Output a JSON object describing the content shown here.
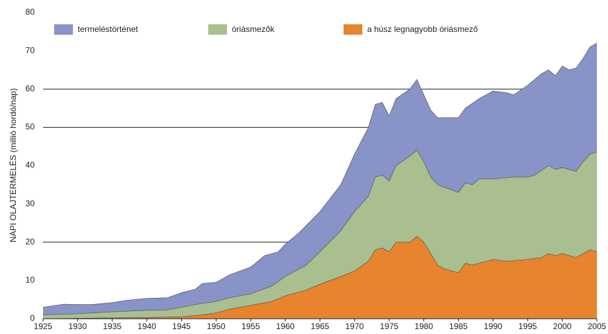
{
  "chart_data": {
    "type": "area",
    "y_label": "NAPI OLAJTERMELÉS (millió hordó/nap)",
    "xlim": [
      1925,
      2005
    ],
    "xticks": [
      1925,
      1930,
      1935,
      1940,
      1945,
      1950,
      1955,
      1960,
      1965,
      1970,
      1975,
      1980,
      1985,
      1990,
      1995,
      2000,
      2005
    ],
    "ylim": [
      0,
      80
    ],
    "yticks": [
      0,
      10,
      20,
      30,
      40,
      50,
      60,
      70,
      80
    ],
    "grid_lines": [
      20,
      50,
      60
    ],
    "series": [
      {
        "name": "termeléstörténet",
        "color": "#8893c8",
        "x": [
          1925,
          1928,
          1930,
          1932,
          1935,
          1937,
          1940,
          1943,
          1945,
          1947,
          1948,
          1950,
          1952,
          1955,
          1957,
          1959,
          1960,
          1962,
          1965,
          1968,
          1970,
          1972,
          1973,
          1974,
          1975,
          1976,
          1978,
          1979,
          1980,
          1981,
          1982,
          1983,
          1985,
          1986,
          1988,
          1990,
          1992,
          1993,
          1995,
          1997,
          1998,
          1999,
          2000,
          2001,
          2002,
          2003,
          2004,
          2005
        ],
        "values": [
          3,
          3.8,
          3.7,
          3.7,
          4.2,
          4.8,
          5.3,
          5.5,
          6.8,
          7.7,
          9.2,
          9.5,
          11.5,
          13.5,
          16.5,
          17.5,
          19.5,
          22.5,
          28,
          35,
          43,
          50,
          56,
          56.5,
          53,
          57.5,
          60,
          62.5,
          58.5,
          54.5,
          52.5,
          52.5,
          52.5,
          55,
          57.5,
          59.5,
          59,
          58.5,
          61,
          64,
          65,
          63.5,
          66,
          65,
          65.5,
          68,
          71,
          72
        ]
      },
      {
        "name": "óriásmezők",
        "color": "#a9bf8f",
        "x": [
          1925,
          1930,
          1935,
          1940,
          1943,
          1945,
          1948,
          1950,
          1952,
          1955,
          1958,
          1960,
          1963,
          1965,
          1968,
          1970,
          1972,
          1973,
          1974,
          1975,
          1976,
          1978,
          1979,
          1980,
          1981,
          1982,
          1985,
          1986,
          1987,
          1988,
          1990,
          1993,
          1995,
          1996,
          1998,
          1999,
          2000,
          2002,
          2003,
          2004,
          2005
        ],
        "values": [
          1,
          1.3,
          1.8,
          2.2,
          2.3,
          3,
          4,
          4.5,
          5.5,
          6.5,
          8.5,
          11,
          14,
          17.5,
          23,
          28,
          32,
          37,
          37.5,
          36,
          40,
          42.5,
          44,
          41,
          37,
          35,
          33,
          35.5,
          35,
          36.5,
          36.5,
          37,
          37,
          37.5,
          40,
          39,
          39.5,
          38.5,
          41,
          43,
          43.5
        ]
      },
      {
        "name": "a húsz legnagyobb óriásmező",
        "color": "#e8832e",
        "x": [
          1925,
          1935,
          1940,
          1945,
          1948,
          1950,
          1952,
          1955,
          1958,
          1960,
          1963,
          1965,
          1968,
          1970,
          1972,
          1973,
          1974,
          1975,
          1976,
          1978,
          1979,
          1980,
          1981,
          1982,
          1983,
          1985,
          1986,
          1987,
          1988,
          1990,
          1992,
          1995,
          1997,
          1998,
          1999,
          2000,
          2002,
          2004,
          2005
        ],
        "values": [
          0,
          0.2,
          0.3,
          0.5,
          1,
          1.5,
          2.5,
          3.5,
          4.5,
          6,
          7.5,
          9,
          11,
          12.5,
          15,
          18,
          18.5,
          17.5,
          20,
          20,
          21.5,
          20,
          17,
          14,
          13,
          12,
          14.5,
          14,
          14.5,
          15.5,
          15,
          15.5,
          16,
          17,
          16.5,
          17,
          16,
          18,
          17.5
        ]
      }
    ]
  }
}
